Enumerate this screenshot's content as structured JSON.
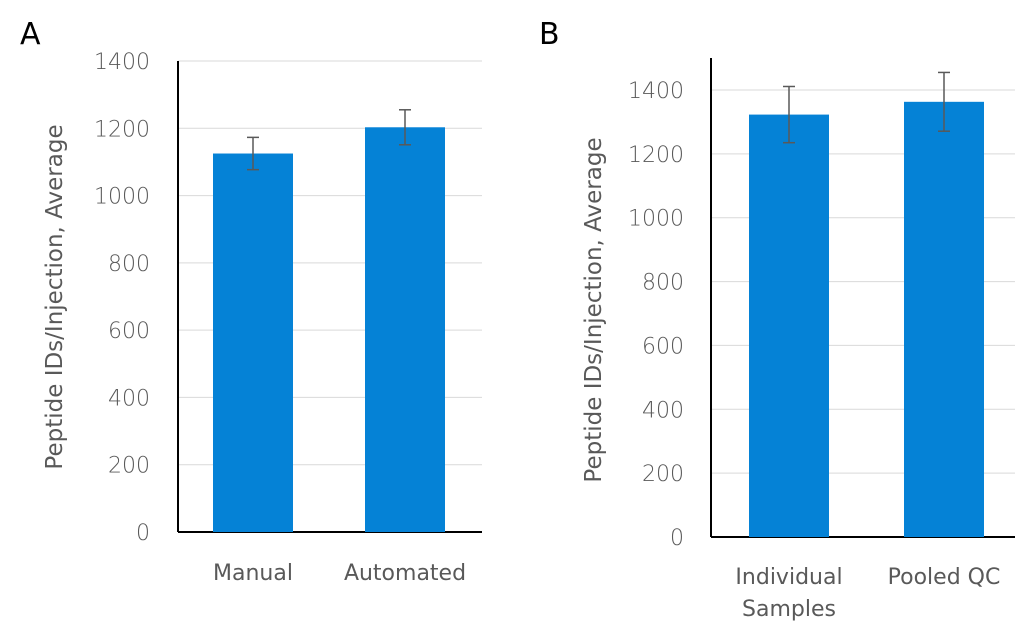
{
  "chart_data": [
    {
      "panel": "A",
      "type": "bar",
      "categories": [
        "Manual",
        "Automated"
      ],
      "values": [
        1125,
        1203
      ],
      "errors": [
        48,
        52
      ],
      "ylabel": "Peptide IDs/Injection, Average",
      "ylim": [
        0,
        1400
      ],
      "yticks": [
        0,
        200,
        400,
        600,
        800,
        1000,
        1200,
        1400
      ],
      "grid": true,
      "bar_color": "#0582d6",
      "error_color": "#595959"
    },
    {
      "panel": "B",
      "type": "bar",
      "categories": [
        [
          "Individual",
          "Samples"
        ],
        [
          "Pooled QC"
        ]
      ],
      "values": [
        1323,
        1363
      ],
      "errors": [
        88,
        92
      ],
      "ylabel": "Peptide IDs/Injection, Average",
      "ylim": [
        0,
        1400
      ],
      "yticks": [
        0,
        200,
        400,
        600,
        800,
        1000,
        1200,
        1400
      ],
      "grid": true,
      "bar_color": "#0582d6",
      "error_color": "#595959"
    }
  ]
}
